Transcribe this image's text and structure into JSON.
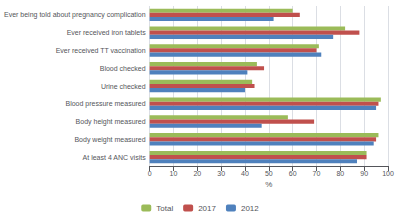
{
  "chart_data": {
    "type": "bar",
    "orientation": "horizontal",
    "categories": [
      "Ever being told about pregnancy complication",
      "Ever received iron tablets",
      "Ever received TT vaccination",
      "Blood checked",
      "Urine checked",
      "Blood pressure measured",
      "Body height measured",
      "Body weight measured",
      "At least 4 ANC visits"
    ],
    "series": [
      {
        "name": "Total",
        "color": "#9BBB59",
        "values": [
          60,
          82,
          71,
          45,
          43,
          97,
          58,
          96,
          91
        ]
      },
      {
        "name": "2017",
        "color": "#C0504D",
        "values": [
          63,
          88,
          70,
          48,
          44,
          96,
          69,
          95,
          91
        ]
      },
      {
        "name": "2012",
        "color": "#4F81BD",
        "values": [
          52,
          77,
          72,
          41,
          40,
          95,
          47,
          94,
          87
        ]
      }
    ],
    "xlabel": "%",
    "xlim": [
      0,
      100
    ],
    "xticks": [
      0,
      10,
      20,
      30,
      40,
      50,
      60,
      70,
      80,
      90,
      100
    ],
    "grid": true,
    "legend": "bottom"
  }
}
